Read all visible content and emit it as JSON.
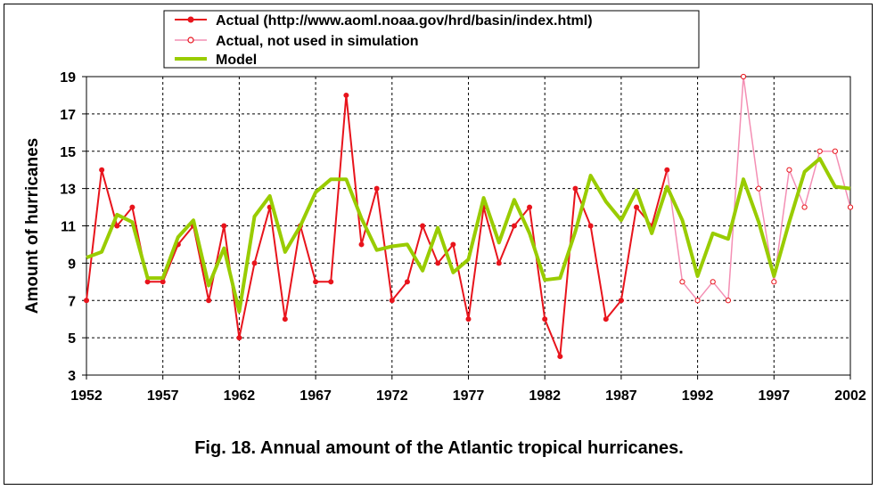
{
  "caption": "Fig. 18. Annual amount of the Atlantic tropical hurricanes.",
  "colors": {
    "actual": "#e8141c",
    "not_used": "#f48fb4",
    "model": "#99cc00",
    "grid": "#000000"
  },
  "chart_data": {
    "type": "line",
    "title": "Fig. 18. Annual amount of the Atlantic tropical hurricanes.",
    "xlabel": "",
    "ylabel": "Amount of hurricanes",
    "xlim": [
      1952,
      2002
    ],
    "ylim": [
      3,
      19
    ],
    "x_ticks": [
      "1952",
      "1957",
      "1962",
      "1967",
      "1972",
      "1977",
      "1982",
      "1987",
      "1992",
      "1997",
      "2002"
    ],
    "y_ticks": [
      "3",
      "5",
      "7",
      "9",
      "11",
      "13",
      "15",
      "17",
      "19"
    ],
    "grid": true,
    "legend_position": "top-center",
    "series": [
      {
        "name": "Actual (http://www.aoml.noaa.gov/hrd/basin/index.html)",
        "marker": "filled-circle",
        "x": [
          1952,
          1953,
          1954,
          1955,
          1956,
          1957,
          1958,
          1959,
          1960,
          1961,
          1962,
          1963,
          1964,
          1965,
          1966,
          1967,
          1968,
          1969,
          1970,
          1971,
          1972,
          1973,
          1974,
          1975,
          1976,
          1977,
          1978,
          1979,
          1980,
          1981,
          1982,
          1983,
          1984,
          1985,
          1986,
          1987,
          1988,
          1989,
          1990
        ],
        "values": [
          7,
          14,
          11,
          12,
          8,
          8,
          10,
          11,
          7,
          11,
          5,
          9,
          12,
          6,
          11,
          8,
          8,
          18,
          10,
          13,
          7,
          8,
          11,
          9,
          10,
          6,
          12,
          9,
          11,
          12,
          6,
          4,
          13,
          11,
          6,
          7,
          12,
          11,
          14
        ]
      },
      {
        "name": "Actual, not used in simulation",
        "marker": "open-circle",
        "x": [
          1990,
          1991,
          1992,
          1993,
          1994,
          1995,
          1996,
          1997,
          1998,
          1999,
          2000,
          2001,
          2002
        ],
        "values": [
          14,
          8,
          7,
          8,
          7,
          19,
          13,
          8,
          14,
          12,
          15,
          15,
          12
        ]
      },
      {
        "name": "Model",
        "marker": "none",
        "x": [
          1952,
          1953,
          1954,
          1955,
          1956,
          1957,
          1958,
          1959,
          1960,
          1961,
          1962,
          1963,
          1964,
          1965,
          1966,
          1967,
          1968,
          1969,
          1970,
          1971,
          1972,
          1973,
          1974,
          1975,
          1976,
          1977,
          1978,
          1979,
          1980,
          1981,
          1982,
          1983,
          1984,
          1985,
          1986,
          1987,
          1988,
          1989,
          1990,
          1991,
          1992,
          1993,
          1994,
          1995,
          1996,
          1997,
          1998,
          1999,
          2000,
          2001,
          2002
        ],
        "values": [
          9.3,
          9.6,
          11.6,
          11.2,
          8.2,
          8.2,
          10.4,
          11.3,
          7.8,
          9.8,
          6.4,
          11.5,
          12.6,
          9.6,
          11.0,
          12.8,
          13.5,
          13.5,
          11.4,
          9.7,
          9.9,
          10.0,
          8.6,
          10.9,
          8.5,
          9.2,
          12.5,
          10.1,
          12.4,
          10.6,
          8.1,
          8.2,
          10.7,
          13.7,
          12.3,
          11.3,
          12.9,
          10.6,
          13.1,
          11.3,
          8.3,
          10.6,
          10.3,
          13.5,
          11.2,
          8.3,
          11.2,
          13.9,
          14.6,
          13.1,
          13.0
        ]
      }
    ]
  }
}
